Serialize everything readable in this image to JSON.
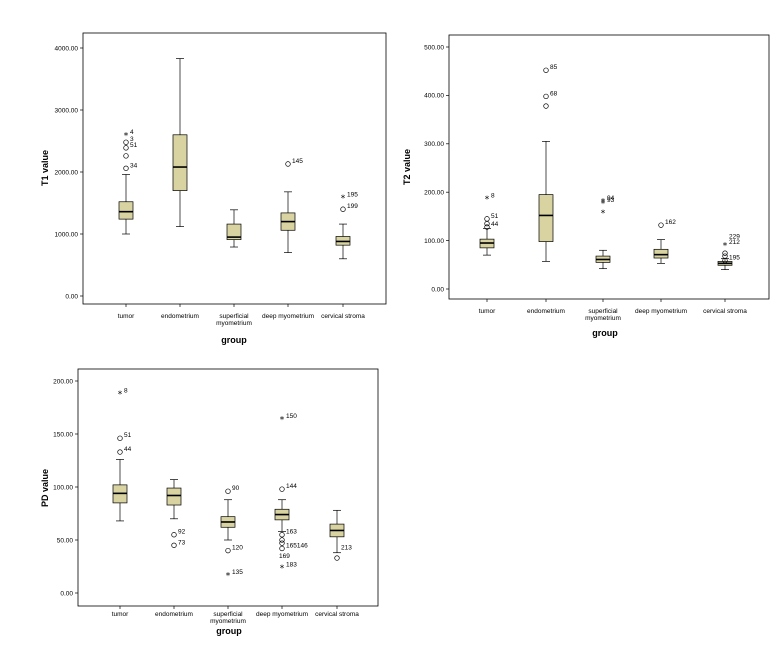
{
  "chart_data": [
    {
      "type": "box",
      "xlabel": "group",
      "ylabel": "T1 value",
      "ylim": [
        0,
        4000
      ],
      "yticks": [
        "0.00",
        "1000.00",
        "2000.00",
        "3000.00",
        "4000.00"
      ],
      "yticks_values": [
        0,
        1000,
        2000,
        3000,
        4000
      ],
      "categories": [
        "tumor",
        "endometrium",
        "superficial myometrium",
        "deep myometrium",
        "cervical stroma"
      ],
      "category_labels": [
        [
          "tumor"
        ],
        [
          "endometrium"
        ],
        [
          "superficial",
          "myometrium"
        ],
        [
          "deep myometrium"
        ],
        [
          "cervical stroma"
        ]
      ],
      "boxes": [
        {
          "min": 1000,
          "q1": 1240,
          "median": 1360,
          "q3": 1520,
          "max": 1960,
          "outliers": [
            {
              "y": 2060,
              "kind": "circle",
              "label": "34"
            },
            {
              "y": 2260,
              "kind": "circle",
              "label": ""
            },
            {
              "y": 2390,
              "kind": "circle",
              "label": "51"
            },
            {
              "y": 2480,
              "kind": "circle",
              "label": "3"
            },
            {
              "y": 2600,
              "kind": "star",
              "label": "4"
            }
          ]
        },
        {
          "min": 1120,
          "q1": 1700,
          "median": 2080,
          "q3": 2600,
          "max": 3830,
          "outliers": []
        },
        {
          "min": 790,
          "q1": 910,
          "median": 950,
          "q3": 1160,
          "max": 1390,
          "outliers": []
        },
        {
          "min": 700,
          "q1": 1060,
          "median": 1200,
          "q3": 1340,
          "max": 1680,
          "outliers": [
            {
              "y": 2130,
              "kind": "circle",
              "label": "145"
            }
          ]
        },
        {
          "min": 600,
          "q1": 820,
          "median": 880,
          "q3": 960,
          "max": 1160,
          "outliers": [
            {
              "y": 1400,
              "kind": "circle",
              "label": "199"
            },
            {
              "y": 1590,
              "kind": "star",
              "label": "195"
            }
          ]
        }
      ]
    },
    {
      "type": "box",
      "xlabel": "group",
      "ylabel": "T2 value",
      "ylim": [
        0,
        500
      ],
      "yticks": [
        "0.00",
        "100.00",
        "200.00",
        "300.00",
        "400.00",
        "500.00"
      ],
      "yticks_values": [
        0,
        100,
        200,
        300,
        400,
        500
      ],
      "categories": [
        "tumor",
        "endometrium",
        "superficial myometrium",
        "deep myometrium",
        "cervical stroma"
      ],
      "category_labels": [
        [
          "tumor"
        ],
        [
          "endometrium"
        ],
        [
          "superficial",
          "myometrium"
        ],
        [
          "deep myometrium"
        ],
        [
          "cervical stroma"
        ]
      ],
      "boxes": [
        {
          "min": 70,
          "q1": 85,
          "median": 95,
          "q3": 103,
          "max": 125,
          "outliers": [
            {
              "y": 128,
              "kind": "circle",
              "label": "44"
            },
            {
              "y": 135,
              "kind": "circle",
              "label": ""
            },
            {
              "y": 145,
              "kind": "circle",
              "label": "51"
            },
            {
              "y": 187,
              "kind": "star",
              "label": "8"
            }
          ]
        },
        {
          "min": 57,
          "q1": 98,
          "median": 152,
          "q3": 195,
          "max": 305,
          "outliers": [
            {
              "y": 378,
              "kind": "circle",
              "label": ""
            },
            {
              "y": 398,
              "kind": "circle",
              "label": "68"
            },
            {
              "y": 452,
              "kind": "circle",
              "label": "85"
            }
          ]
        },
        {
          "min": 42,
          "q1": 55,
          "median": 61,
          "q3": 68,
          "max": 80,
          "outliers": [
            {
              "y": 158,
              "kind": "star",
              "label": ""
            },
            {
              "y": 178,
              "kind": "star",
              "label": "93"
            },
            {
              "y": 182,
              "kind": "star",
              "label": "94"
            }
          ]
        },
        {
          "min": 53,
          "q1": 64,
          "median": 71,
          "q3": 82,
          "max": 102,
          "outliers": [
            {
              "y": 132,
              "kind": "circle",
              "label": "162"
            }
          ]
        },
        {
          "min": 40,
          "q1": 49,
          "median": 53,
          "q3": 57,
          "max": 63,
          "outliers": [
            {
              "y": 59,
              "kind": "circle",
              "label": "195"
            },
            {
              "y": 68,
              "kind": "circle",
              "label": ""
            },
            {
              "y": 74,
              "kind": "circle",
              "label": ""
            },
            {
              "y": 91,
              "kind": "star",
              "label": "212"
            },
            {
              "y": 102,
              "kind": "none",
              "label": "229"
            }
          ]
        }
      ]
    },
    {
      "type": "box",
      "xlabel": "group",
      "ylabel": "PD value",
      "ylim": [
        0,
        200
      ],
      "yticks": [
        "0.00",
        "50.00",
        "100.00",
        "150.00",
        "200.00"
      ],
      "yticks_values": [
        0,
        50,
        100,
        150,
        200
      ],
      "categories": [
        "tumor",
        "endometrium",
        "superficial myometrium",
        "deep myometrium",
        "cervical stroma"
      ],
      "category_labels": [
        [
          "tumor"
        ],
        [
          "endometrium"
        ],
        [
          "superficial",
          "myometrium"
        ],
        [
          "deep myometrium"
        ],
        [
          "cervical stroma"
        ]
      ],
      "boxes": [
        {
          "min": 68,
          "q1": 85,
          "median": 94,
          "q3": 102,
          "max": 126,
          "outliers": [
            {
              "y": 133,
              "kind": "circle",
              "label": "44"
            },
            {
              "y": 146,
              "kind": "circle",
              "label": "51"
            },
            {
              "y": 188,
              "kind": "star",
              "label": "8"
            }
          ]
        },
        {
          "min": 70,
          "q1": 83,
          "median": 92,
          "q3": 99,
          "max": 107,
          "outliers": [
            {
              "y": 45,
              "kind": "circle",
              "label": "73"
            },
            {
              "y": 55,
              "kind": "circle",
              "label": "92"
            }
          ]
        },
        {
          "min": 50,
          "q1": 62,
          "median": 67,
          "q3": 72,
          "max": 88,
          "outliers": [
            {
              "y": 17,
              "kind": "star",
              "label": "135"
            },
            {
              "y": 40,
              "kind": "circle",
              "label": "120"
            },
            {
              "y": 96,
              "kind": "circle",
              "label": "90"
            }
          ]
        },
        {
          "min": 58,
          "q1": 69,
          "median": 74,
          "q3": 79,
          "max": 88,
          "outliers": [
            {
              "y": 24,
              "kind": "star",
              "label": "183"
            },
            {
              "y": 42,
              "kind": "circle",
              "label": "165146"
            },
            {
              "y": 47,
              "kind": "circle",
              "label": ""
            },
            {
              "y": 50,
              "kind": "circle",
              "label": ""
            },
            {
              "y": 55,
              "kind": "circle",
              "label": "163"
            },
            {
              "y": 98,
              "kind": "circle",
              "label": "144"
            },
            {
              "y": 164,
              "kind": "star",
              "label": "150"
            }
          ]
        },
        {
          "min": 38,
          "q1": 53,
          "median": 59,
          "q3": 65,
          "max": 78,
          "outliers": [
            {
              "y": 33,
              "kind": "circle",
              "label": ""
            },
            {
              "y": 40,
              "kind": "none",
              "label": "213"
            }
          ]
        }
      ]
    }
  ],
  "extra_labels": {
    "pd_outlier_169": "169"
  }
}
